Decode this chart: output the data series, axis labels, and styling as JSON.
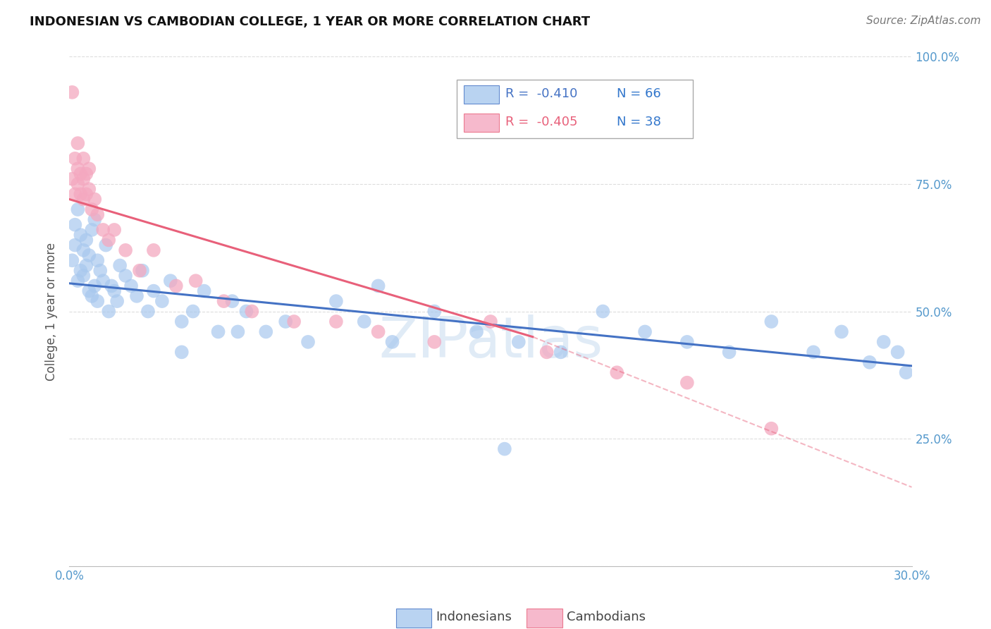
{
  "title": "INDONESIAN VS CAMBODIAN COLLEGE, 1 YEAR OR MORE CORRELATION CHART",
  "source": "Source: ZipAtlas.com",
  "ylabel": "College, 1 year or more",
  "xlim": [
    0.0,
    0.3
  ],
  "ylim": [
    0.0,
    1.0
  ],
  "xticks": [
    0.0,
    0.05,
    0.1,
    0.15,
    0.2,
    0.25,
    0.3
  ],
  "xticklabels": [
    "0.0%",
    "",
    "",
    "",
    "",
    "",
    "30.0%"
  ],
  "yticks": [
    0.0,
    0.25,
    0.5,
    0.75,
    1.0
  ],
  "yticklabels": [
    "",
    "25.0%",
    "50.0%",
    "75.0%",
    "100.0%"
  ],
  "legend_r": [
    "R =  -0.410",
    "R =  -0.405"
  ],
  "legend_n": [
    "N = 66",
    "N = 38"
  ],
  "blue_color": "#A8C8EE",
  "pink_color": "#F4A8C0",
  "blue_line_color": "#4472C4",
  "pink_line_color": "#E8607A",
  "indonesian_x": [
    0.001,
    0.002,
    0.002,
    0.003,
    0.003,
    0.004,
    0.004,
    0.005,
    0.005,
    0.006,
    0.006,
    0.007,
    0.007,
    0.008,
    0.008,
    0.009,
    0.009,
    0.01,
    0.01,
    0.011,
    0.012,
    0.013,
    0.014,
    0.015,
    0.016,
    0.017,
    0.018,
    0.02,
    0.022,
    0.024,
    0.026,
    0.028,
    0.03,
    0.033,
    0.036,
    0.04,
    0.044,
    0.048,
    0.053,
    0.058,
    0.063,
    0.07,
    0.077,
    0.085,
    0.095,
    0.105,
    0.115,
    0.13,
    0.145,
    0.16,
    0.175,
    0.19,
    0.205,
    0.22,
    0.235,
    0.25,
    0.265,
    0.275,
    0.285,
    0.29,
    0.295,
    0.298,
    0.06,
    0.04,
    0.11,
    0.155
  ],
  "indonesian_y": [
    0.6,
    0.63,
    0.67,
    0.56,
    0.7,
    0.58,
    0.65,
    0.62,
    0.57,
    0.59,
    0.64,
    0.54,
    0.61,
    0.53,
    0.66,
    0.55,
    0.68,
    0.52,
    0.6,
    0.58,
    0.56,
    0.63,
    0.5,
    0.55,
    0.54,
    0.52,
    0.59,
    0.57,
    0.55,
    0.53,
    0.58,
    0.5,
    0.54,
    0.52,
    0.56,
    0.48,
    0.5,
    0.54,
    0.46,
    0.52,
    0.5,
    0.46,
    0.48,
    0.44,
    0.52,
    0.48,
    0.44,
    0.5,
    0.46,
    0.44,
    0.42,
    0.5,
    0.46,
    0.44,
    0.42,
    0.48,
    0.42,
    0.46,
    0.4,
    0.44,
    0.42,
    0.38,
    0.46,
    0.42,
    0.55,
    0.23
  ],
  "cambodian_x": [
    0.001,
    0.001,
    0.002,
    0.002,
    0.003,
    0.003,
    0.003,
    0.004,
    0.004,
    0.005,
    0.005,
    0.005,
    0.006,
    0.006,
    0.007,
    0.007,
    0.008,
    0.009,
    0.01,
    0.012,
    0.014,
    0.016,
    0.02,
    0.025,
    0.03,
    0.038,
    0.045,
    0.055,
    0.065,
    0.08,
    0.095,
    0.11,
    0.13,
    0.15,
    0.17,
    0.195,
    0.22,
    0.25
  ],
  "cambodian_y": [
    0.93,
    0.76,
    0.73,
    0.8,
    0.75,
    0.78,
    0.83,
    0.73,
    0.77,
    0.72,
    0.76,
    0.8,
    0.73,
    0.77,
    0.74,
    0.78,
    0.7,
    0.72,
    0.69,
    0.66,
    0.64,
    0.66,
    0.62,
    0.58,
    0.62,
    0.55,
    0.56,
    0.52,
    0.5,
    0.48,
    0.48,
    0.46,
    0.44,
    0.48,
    0.42,
    0.38,
    0.36,
    0.27
  ],
  "blue_regression": [
    0.0,
    0.555,
    0.3,
    0.393
  ],
  "pink_regression_solid": [
    0.0,
    0.72,
    0.165,
    0.45
  ],
  "pink_regression_dashed": [
    0.165,
    0.45,
    0.3,
    0.155
  ],
  "grid_color": "#DDDDDD",
  "tick_color": "#5599CC",
  "title_fontsize": 13,
  "source_fontsize": 11,
  "axis_fontsize": 12,
  "legend_fontsize": 13
}
